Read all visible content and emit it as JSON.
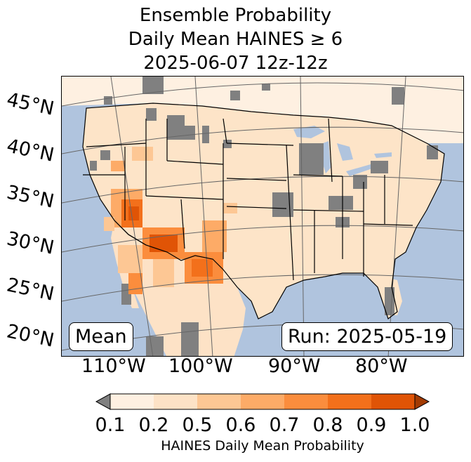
{
  "title": {
    "line1": "Ensemble Probability",
    "line2": "Daily Mean HAINES ≥ 6",
    "line3": "2025-06-07 12z-12z"
  },
  "map": {
    "lat_labels": [
      "45°N",
      "40°N",
      "35°N",
      "30°N",
      "25°N",
      "20°N"
    ],
    "lon_labels": [
      "110°W",
      "100°W",
      "90°W",
      "80°W"
    ],
    "stat_box": "Mean",
    "run_box": "Run: 2025-05-19",
    "colors": {
      "ocean": "#b0c4de",
      "land_base": "#fde4c8",
      "missing": "#808080",
      "grid": "#666666"
    }
  },
  "colorbar": {
    "label": "HAINES Daily Mean Probability",
    "ticks": [
      "0.1",
      "0.2",
      "0.5",
      "0.6",
      "0.7",
      "0.8",
      "0.9",
      "1.0"
    ],
    "colors": [
      "#fef0e1",
      "#fde2c6",
      "#fdc794",
      "#fdab67",
      "#fb8d3d",
      "#f3701b",
      "#e05406"
    ],
    "under_color": "#808080",
    "over_color": "#a33b03"
  }
}
